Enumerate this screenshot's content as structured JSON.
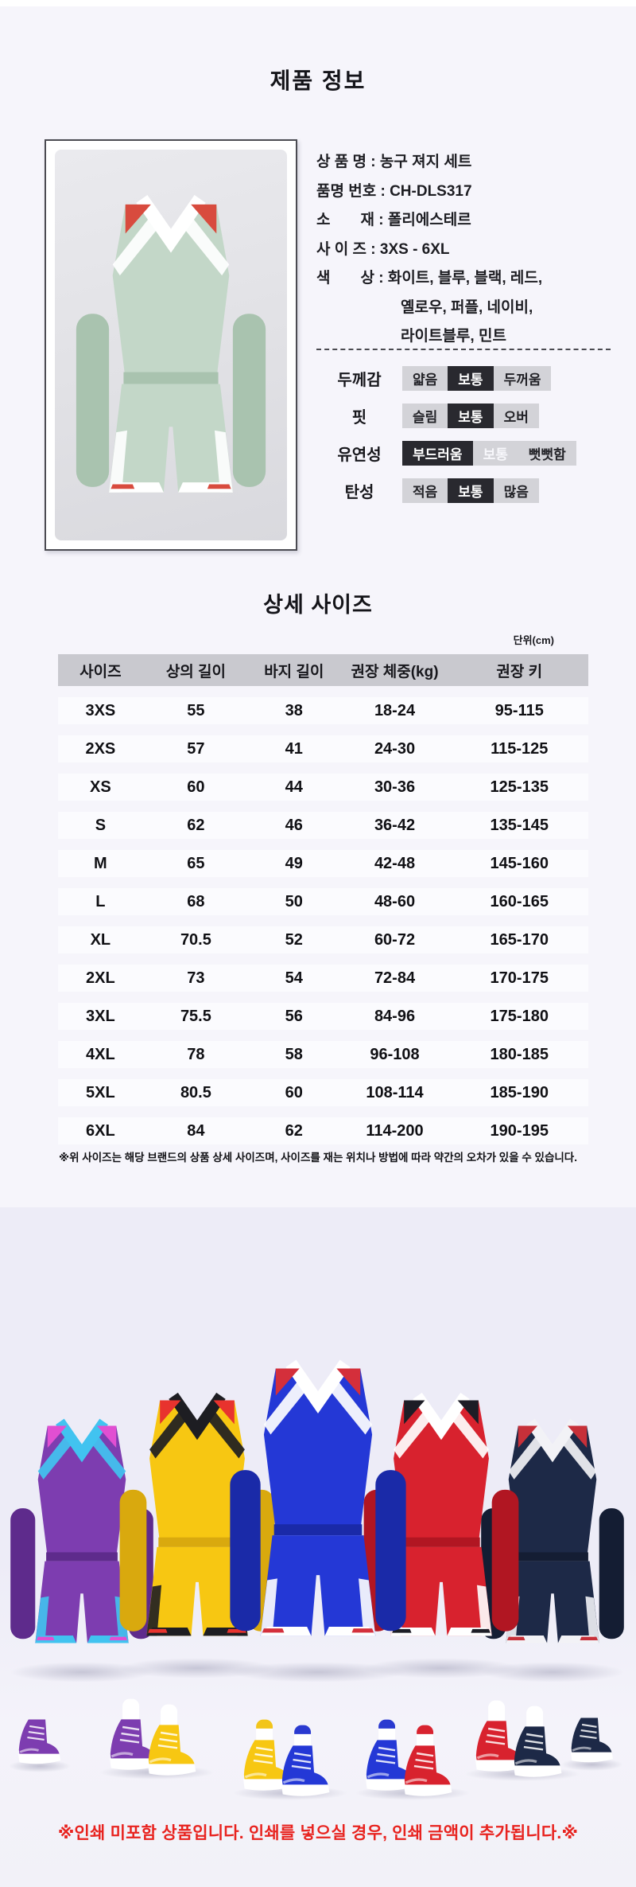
{
  "page": {
    "title": "제품 정보"
  },
  "colors": {
    "page_bg": "#f6f5fb",
    "showcase_bg": "#edecf7",
    "table_header_gray": "#c9c9cf",
    "selected_dark": "#29292f",
    "option_gray": "#d3d3d8",
    "banner_red": "#e8231f"
  },
  "product": {
    "info_lines": [
      {
        "text": "상 품 명 : 농구 져지 세트",
        "indent": false
      },
      {
        "text": "품명 번호 : CH-DLS317",
        "indent": false
      },
      {
        "text": "소　　재 : 폴리에스테르",
        "indent": false
      },
      {
        "text": "사 이 즈 : 3XS - 6XL",
        "indent": false
      },
      {
        "text": "화이트, 블루, 블랙, 레드,",
        "indent": true,
        "prefix": "색　　상 : "
      },
      {
        "text": "옐로우, 퍼플, 네이비,",
        "indent": true
      },
      {
        "text": "라이트블루, 민트",
        "indent": true
      }
    ],
    "attributes": [
      {
        "name": "두께감",
        "options": [
          "얇음",
          "보통",
          "두꺼움"
        ],
        "selected": 1,
        "muted": -1
      },
      {
        "name": "핏",
        "options": [
          "슬림",
          "보통",
          "오버"
        ],
        "selected": 1,
        "muted": -1
      },
      {
        "name": "유연성",
        "options": [
          "부드러움",
          "보통",
          "뻣뻣함"
        ],
        "selected": 0,
        "muted": 1
      },
      {
        "name": "탄성",
        "options": [
          "적음",
          "보통",
          "많음"
        ],
        "selected": 1,
        "muted": -1
      }
    ],
    "photo_colors": {
      "name": "mint",
      "main": "#c3d7c8",
      "dark": "#a9c3af",
      "trim": "#ffffff",
      "accent": "#d84b3e"
    }
  },
  "size_section": {
    "title": "상세 사이즈",
    "unit": "단위(cm)",
    "table": {
      "headers": [
        "사이즈",
        "상의 길이",
        "바지 길이",
        "권장 체중(kg)",
        "권장 키"
      ],
      "rows": [
        [
          "3XS",
          "55",
          "38",
          "18-24",
          "95-115"
        ],
        [
          "2XS",
          "57",
          "41",
          "24-30",
          "115-125"
        ],
        [
          "XS",
          "60",
          "44",
          "30-36",
          "125-135"
        ],
        [
          "S",
          "62",
          "46",
          "36-42",
          "135-145"
        ],
        [
          "M",
          "65",
          "49",
          "42-48",
          "145-160"
        ],
        [
          "L",
          "68",
          "50",
          "48-60",
          "160-165"
        ],
        [
          "XL",
          "70.5",
          "52",
          "60-72",
          "165-170"
        ],
        [
          "2XL",
          "73",
          "54",
          "72-84",
          "170-175"
        ],
        [
          "3XL",
          "75.5",
          "56",
          "84-96",
          "175-180"
        ],
        [
          "4XL",
          "78",
          "58",
          "96-108",
          "180-185"
        ],
        [
          "5XL",
          "80.5",
          "60",
          "108-114",
          "185-190"
        ],
        [
          "6XL",
          "84",
          "62",
          "114-200",
          "190-195"
        ]
      ]
    },
    "disclaimer": "※위 사이즈는 해당 브랜드의 상품 상세 사이즈며, 사이즈를 재는 위치나 방법에 따라 약간의 오차가 있을 수 있습니다."
  },
  "showcase": {
    "jerseys": [
      {
        "name": "purple",
        "main": "#7d3db0",
        "dark": "#5e2b8c",
        "trim": "#41c3f0",
        "accent": "#e14fd2"
      },
      {
        "name": "yellow",
        "main": "#f7c712",
        "dark": "#d9a90e",
        "trim": "#1d1d22",
        "accent": "#e8332e"
      },
      {
        "name": "blue",
        "main": "#2438d6",
        "dark": "#1a2aa8",
        "trim": "#ffffff",
        "accent": "#d42f3b"
      },
      {
        "name": "red",
        "main": "#d8222e",
        "dark": "#b11622",
        "trim": "#ffffff",
        "accent": "#1d1d26"
      },
      {
        "name": "navy",
        "main": "#1d2947",
        "dark": "#141d33",
        "trim": "#f2f2f6",
        "accent": "#c73039"
      }
    ],
    "shoe_clusters": [
      {
        "shoes": [
          {
            "color": "#7d3db0",
            "sock": null
          }
        ]
      },
      {
        "shoes": [
          {
            "color": "#7d3db0",
            "sock": "#ffffff"
          },
          {
            "color": "#f7c712",
            "sock": "#ffffff"
          }
        ]
      },
      {
        "shoes": [
          {
            "color": "#f7c712",
            "sock": "#f2c51a"
          },
          {
            "color": "#2438d6",
            "sock": "#2a3ad0"
          }
        ]
      },
      {
        "shoes": [
          {
            "color": "#2438d6",
            "sock": "#2a3ad0"
          },
          {
            "color": "#d8222e",
            "sock": "#d8232f"
          }
        ]
      },
      {
        "shoes": [
          {
            "color": "#d8222e",
            "sock": "#ffffff"
          },
          {
            "color": "#1d2947",
            "sock": "#ffffff"
          }
        ]
      },
      {
        "shoes": [
          {
            "color": "#1d2947",
            "sock": null
          }
        ]
      }
    ],
    "banner": "※인쇄 미포함 상품입니다. 인쇄를 넣으실 경우, 인쇄 금액이 추가됩니다.※"
  }
}
